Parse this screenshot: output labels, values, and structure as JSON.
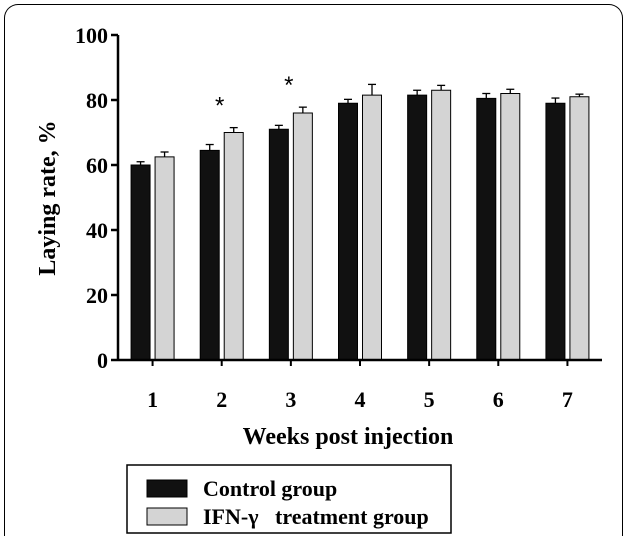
{
  "chart_data": {
    "type": "bar",
    "categories": [
      "1",
      "2",
      "3",
      "4",
      "5",
      "6",
      "7"
    ],
    "series": [
      {
        "name": "Control group",
        "color": "#111111",
        "values": [
          60,
          64.5,
          71,
          79,
          81.5,
          80.5,
          79
        ],
        "errors": [
          1.0,
          1.8,
          1.2,
          1.2,
          1.5,
          1.5,
          1.6
        ]
      },
      {
        "name": "IFN-γ   treatment group",
        "color": "#d4d4d4",
        "values": [
          62.5,
          70,
          76,
          81.5,
          83,
          82,
          81
        ],
        "errors": [
          1.5,
          1.5,
          1.8,
          3.3,
          1.5,
          1.3,
          0.8
        ]
      }
    ],
    "xlabel": "Weeks post injection",
    "ylabel": "Laying rate, %",
    "ylim": [
      0,
      100
    ],
    "yticks": [
      0,
      20,
      40,
      60,
      80,
      100
    ],
    "grid": false,
    "legend": "bottom",
    "annotations": [
      {
        "category": "2",
        "text": "*"
      },
      {
        "category": "3",
        "text": "*"
      }
    ]
  }
}
